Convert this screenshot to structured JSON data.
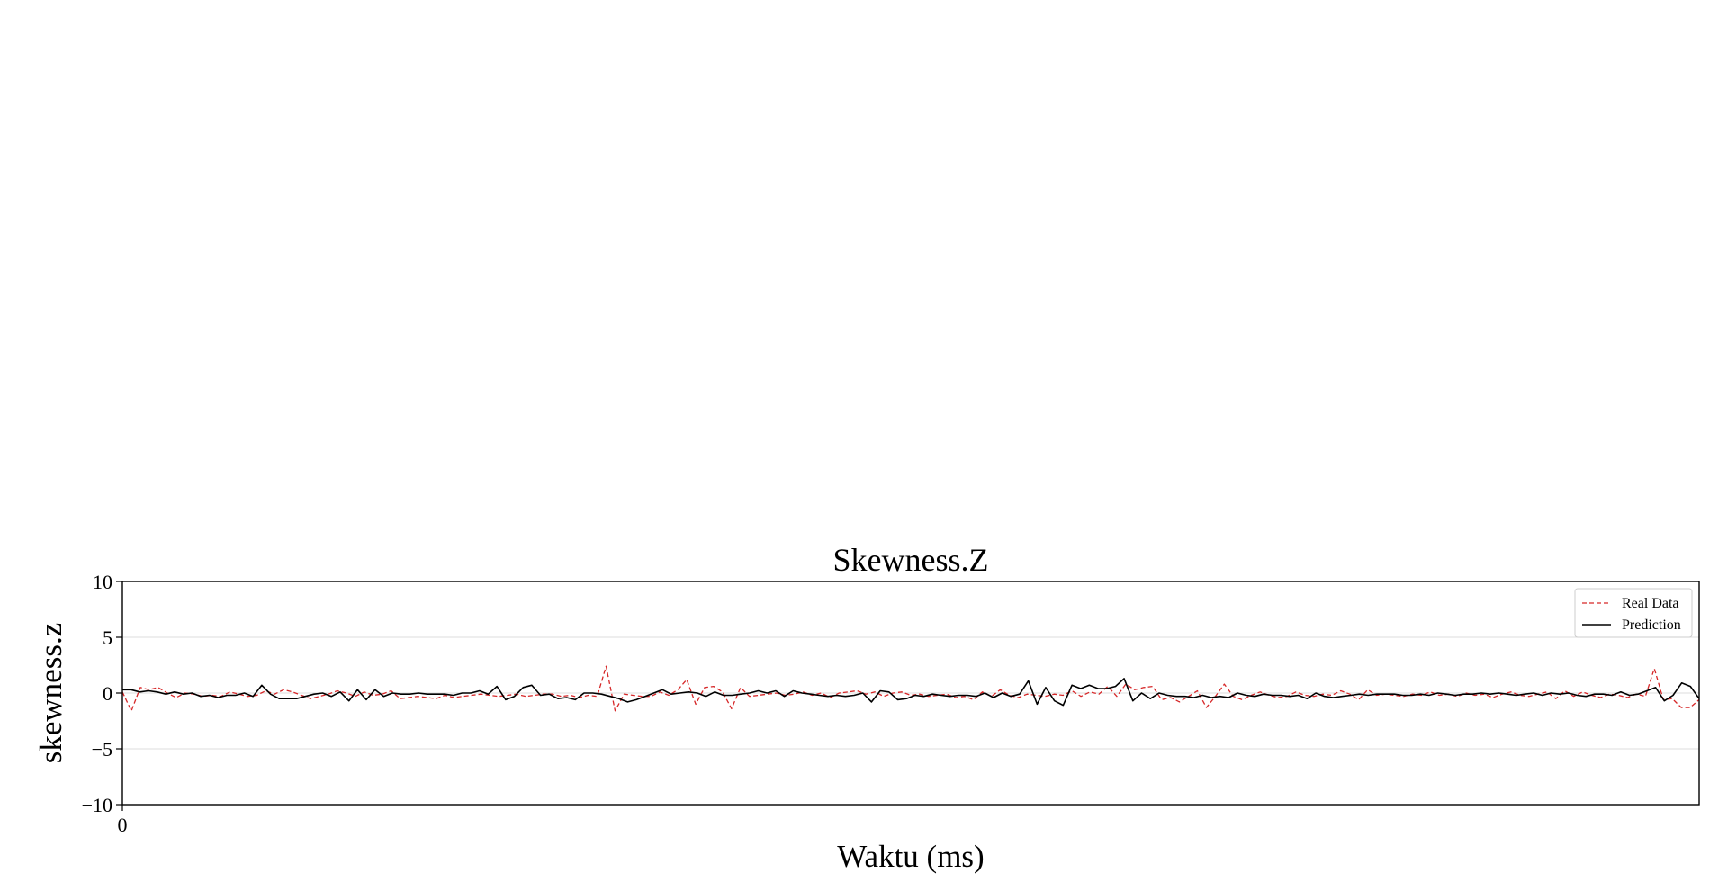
{
  "chart_data": {
    "type": "line",
    "title": "Skewness.Z",
    "xlabel": "Waktu (ms)",
    "ylabel": "skewness.z",
    "xlim": [
      0,
      280
    ],
    "ylim": [
      -10,
      10
    ],
    "yticks": [
      10,
      5,
      0,
      -5,
      -10
    ],
    "ytick_labels": [
      "10",
      "5",
      "0",
      "−5",
      "−10"
    ],
    "xticks": [
      0
    ],
    "xtick_labels": [
      "0"
    ],
    "grid": true,
    "legend_position": "top-right",
    "series": [
      {
        "name": "Real Data",
        "style": "dashed",
        "color": "#d62728",
        "values": [
          0.1,
          -1.6,
          0.5,
          0.3,
          0.5,
          0.0,
          -0.4,
          0.0,
          -0.1,
          -0.3,
          -0.2,
          -0.3,
          0.1,
          -0.1,
          -0.3,
          -0.2,
          0.2,
          -0.1,
          0.3,
          0.1,
          -0.2,
          -0.5,
          -0.3,
          -0.1,
          0.2,
          0.0,
          -0.3,
          0.1,
          -0.2,
          -0.1,
          0.2,
          -0.5,
          -0.4,
          -0.3,
          -0.4,
          -0.5,
          -0.2,
          -0.4,
          -0.3,
          -0.2,
          -0.1,
          -0.2,
          -0.3,
          -0.2,
          -0.1,
          -0.3,
          -0.2,
          -0.1,
          -0.1,
          -0.3,
          -0.2,
          -0.4,
          -0.2,
          -0.3,
          2.4,
          -1.6,
          -0.1,
          -0.2,
          -0.3,
          -0.3,
          0.1,
          -0.2,
          0.3,
          1.2,
          -1.0,
          0.5,
          0.6,
          0.1,
          -1.4,
          0.5,
          -0.3,
          -0.2,
          -0.1,
          0.0,
          -0.2,
          -0.1,
          0.1,
          -0.2,
          0.0,
          -0.4,
          0.0,
          0.1,
          0.2,
          -0.1,
          0.1,
          -0.3,
          0.0,
          0.1,
          -0.2,
          -0.1,
          -0.3,
          -0.2,
          -0.1,
          -0.4,
          -0.3,
          -0.6,
          0.1,
          -0.3,
          0.3,
          -0.2,
          -0.4,
          -0.1,
          -0.2,
          -0.3,
          -0.1,
          -0.2,
          0.2,
          -0.3,
          0.1,
          -0.1,
          0.6,
          -0.3,
          0.8,
          0.3,
          0.5,
          0.6,
          -0.6,
          -0.4,
          -0.8,
          -0.3,
          0.2,
          -1.3,
          -0.3,
          0.8,
          -0.3,
          -0.6,
          -0.2,
          0.1,
          -0.2,
          -0.4,
          -0.3,
          0.1,
          -0.2,
          -0.3,
          -0.1,
          -0.2,
          0.2,
          -0.1,
          -0.6,
          0.3,
          -0.2,
          -0.1,
          -0.2,
          -0.3,
          -0.1,
          -0.2,
          0.1,
          -0.2,
          -0.1,
          -0.3,
          0.0,
          -0.2,
          -0.1,
          -0.4,
          -0.1,
          0.1,
          -0.2,
          -0.3,
          -0.1,
          0.1,
          -0.5,
          0.2,
          -0.3,
          0.1,
          -0.2,
          -0.4,
          -0.1,
          -0.2,
          -0.4,
          -0.1,
          -0.3,
          2.2,
          -0.6,
          -0.5,
          -1.3,
          -1.3,
          -0.6
        ]
      },
      {
        "name": "Prediction",
        "style": "solid",
        "color": "#000000",
        "values": [
          0.3,
          0.3,
          0.1,
          0.2,
          0.1,
          -0.1,
          0.1,
          -0.1,
          0.0,
          -0.3,
          -0.2,
          -0.4,
          -0.2,
          -0.2,
          0.0,
          -0.3,
          0.7,
          -0.1,
          -0.5,
          -0.5,
          -0.5,
          -0.3,
          -0.1,
          0.0,
          -0.3,
          0.1,
          -0.7,
          0.3,
          -0.6,
          0.3,
          -0.3,
          0.0,
          -0.1,
          -0.1,
          0.0,
          -0.1,
          -0.1,
          -0.1,
          -0.2,
          0.0,
          0.0,
          0.2,
          -0.1,
          0.6,
          -0.6,
          -0.3,
          0.5,
          0.7,
          -0.2,
          -0.1,
          -0.5,
          -0.4,
          -0.6,
          0.0,
          0.0,
          -0.1,
          -0.3,
          -0.5,
          -0.8,
          -0.6,
          -0.3,
          0.0,
          0.3,
          -0.1,
          0.0,
          0.1,
          0.0,
          -0.3,
          0.1,
          -0.2,
          -0.2,
          -0.1,
          0.0,
          0.2,
          0.0,
          0.2,
          -0.3,
          0.2,
          0.0,
          -0.1,
          -0.2,
          -0.3,
          -0.2,
          -0.3,
          -0.2,
          0.0,
          -0.8,
          0.2,
          0.1,
          -0.6,
          -0.5,
          -0.2,
          -0.3,
          -0.1,
          -0.2,
          -0.3,
          -0.2,
          -0.2,
          -0.3,
          0.0,
          -0.4,
          0.0,
          -0.3,
          -0.1,
          1.1,
          -1.0,
          0.5,
          -0.7,
          -1.1,
          0.7,
          0.4,
          0.7,
          0.4,
          0.4,
          0.6,
          1.3,
          -0.7,
          0.0,
          -0.5,
          0.0,
          -0.2,
          -0.3,
          -0.3,
          -0.4,
          -0.2,
          -0.4,
          -0.3,
          -0.4,
          0.0,
          -0.2,
          -0.3,
          -0.1,
          -0.2,
          -0.2,
          -0.3,
          -0.2,
          -0.5,
          0.0,
          -0.3,
          -0.4,
          -0.3,
          -0.2,
          -0.1,
          -0.2,
          -0.1,
          -0.1,
          -0.1,
          -0.2,
          -0.2,
          -0.1,
          -0.2,
          0.0,
          -0.1,
          -0.2,
          -0.1,
          -0.1,
          0.0,
          -0.1,
          0.0,
          -0.1,
          -0.2,
          -0.1,
          0.0,
          -0.2,
          0.0,
          -0.1,
          0.0,
          -0.2,
          -0.3,
          -0.1,
          -0.1,
          -0.2,
          0.1,
          -0.2,
          -0.1,
          0.2,
          0.5,
          -0.7,
          -0.2,
          0.9,
          0.6,
          -0.5
        ]
      }
    ]
  }
}
